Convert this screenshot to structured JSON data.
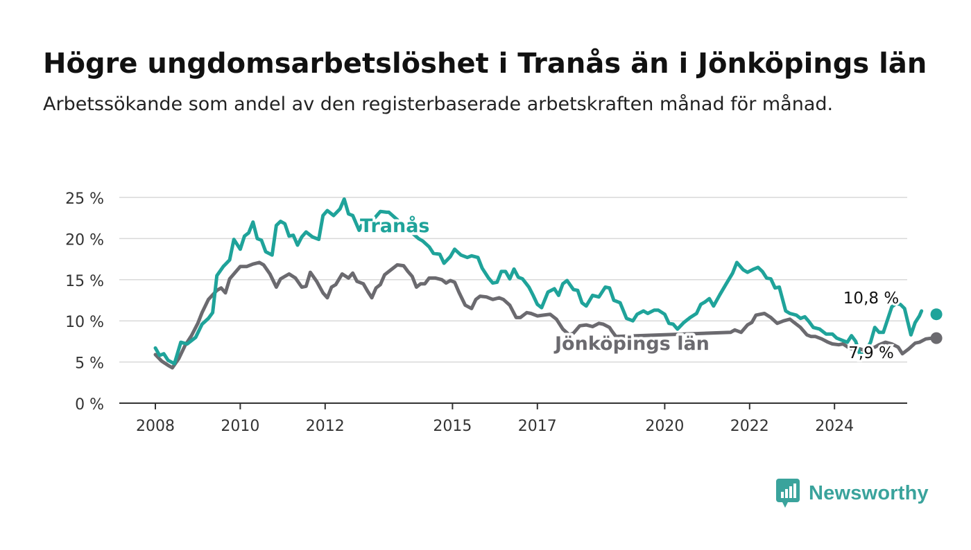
{
  "header": {
    "title": "Högre ungdomsarbetslöshet i Tranås än i Jönköpings län",
    "subtitle": "Arbetssökande som andel av den registerbaserade arbetskraften månad för månad."
  },
  "brand": {
    "name": "Newsworthy",
    "color": "#3aa39c",
    "icon": "newsworthy-logo-icon"
  },
  "chart_data": {
    "type": "line",
    "title": "Högre ungdomsarbetslöshet i Tranås än i Jönköpings län",
    "subtitle": "Arbetssökande som andel av den registerbaserade arbetskraften månad för månad.",
    "xlabel": "",
    "ylabel": "",
    "ylim": [
      0,
      25
    ],
    "yticks": [
      0,
      5,
      10,
      15,
      20,
      25
    ],
    "ytick_labels": [
      "0 %",
      "5 %",
      "10 %",
      "15 %",
      "20 %",
      "25 %"
    ],
    "xticks": [
      2008,
      2010,
      2012,
      2015,
      2017,
      2020,
      2022,
      2024
    ],
    "xtick_labels": [
      "2008",
      "2010",
      "2012",
      "2015",
      "2017",
      "2020",
      "2022",
      "2024"
    ],
    "grid": true,
    "legend": "inline labels",
    "series": [
      {
        "name": "Tranås",
        "color": "#1fa39a",
        "end_label": "10,8 %",
        "points": [
          [
            2008.0,
            6.7
          ],
          [
            2008.1,
            5.8
          ],
          [
            2008.2,
            6.0
          ],
          [
            2008.3,
            5.2
          ],
          [
            2008.45,
            4.8
          ],
          [
            2008.6,
            7.4
          ],
          [
            2008.75,
            7.2
          ],
          [
            2008.95,
            8.0
          ],
          [
            2009.1,
            9.6
          ],
          [
            2009.25,
            10.3
          ],
          [
            2009.35,
            11.0
          ],
          [
            2009.45,
            15.5
          ],
          [
            2009.6,
            16.6
          ],
          [
            2009.75,
            17.4
          ],
          [
            2009.85,
            19.9
          ],
          [
            2010.0,
            18.7
          ],
          [
            2010.1,
            20.3
          ],
          [
            2010.2,
            20.7
          ],
          [
            2010.3,
            22.0
          ],
          [
            2010.4,
            20.0
          ],
          [
            2010.5,
            19.8
          ],
          [
            2010.6,
            18.4
          ],
          [
            2010.75,
            18.0
          ],
          [
            2010.85,
            21.6
          ],
          [
            2010.95,
            22.1
          ],
          [
            2011.05,
            21.8
          ],
          [
            2011.15,
            20.3
          ],
          [
            2011.25,
            20.4
          ],
          [
            2011.35,
            19.2
          ],
          [
            2011.45,
            20.2
          ],
          [
            2011.55,
            20.8
          ],
          [
            2011.7,
            20.2
          ],
          [
            2011.85,
            19.9
          ],
          [
            2011.95,
            22.8
          ],
          [
            2012.05,
            23.4
          ],
          [
            2012.2,
            22.8
          ],
          [
            2012.35,
            23.6
          ],
          [
            2012.45,
            24.8
          ],
          [
            2012.55,
            23.0
          ],
          [
            2012.65,
            22.8
          ],
          [
            2012.8,
            21.0
          ],
          [
            2012.9,
            22.1
          ],
          [
            2013.0,
            22.4
          ],
          [
            2013.15,
            22.4
          ],
          [
            2013.3,
            23.3
          ],
          [
            2013.45,
            23.2
          ],
          [
            2013.5,
            23.2
          ],
          [
            2014.2,
            20.0
          ],
          [
            2014.3,
            19.7
          ],
          [
            2014.45,
            19.0
          ],
          [
            2014.55,
            18.2
          ],
          [
            2014.7,
            18.1
          ],
          [
            2014.8,
            17.0
          ],
          [
            2014.95,
            17.8
          ],
          [
            2015.05,
            18.7
          ],
          [
            2015.2,
            18.0
          ],
          [
            2015.35,
            17.7
          ],
          [
            2015.45,
            17.9
          ],
          [
            2015.6,
            17.7
          ],
          [
            2015.7,
            16.4
          ],
          [
            2015.85,
            15.2
          ],
          [
            2015.95,
            14.6
          ],
          [
            2016.05,
            14.7
          ],
          [
            2016.15,
            16.0
          ],
          [
            2016.25,
            16.0
          ],
          [
            2016.35,
            15.1
          ],
          [
            2016.45,
            16.3
          ],
          [
            2016.55,
            15.3
          ],
          [
            2016.65,
            15.1
          ],
          [
            2016.8,
            14.1
          ],
          [
            2016.9,
            13.1
          ],
          [
            2017.0,
            12.0
          ],
          [
            2017.1,
            11.6
          ],
          [
            2017.25,
            13.5
          ],
          [
            2017.4,
            13.9
          ],
          [
            2017.5,
            13.1
          ],
          [
            2017.6,
            14.5
          ],
          [
            2017.7,
            14.9
          ],
          [
            2017.85,
            13.8
          ],
          [
            2017.95,
            13.7
          ],
          [
            2018.05,
            12.2
          ],
          [
            2018.15,
            11.8
          ],
          [
            2018.3,
            13.1
          ],
          [
            2018.45,
            12.9
          ],
          [
            2018.6,
            14.1
          ],
          [
            2018.7,
            14.0
          ],
          [
            2018.8,
            12.5
          ],
          [
            2018.95,
            12.2
          ],
          [
            2019.1,
            10.3
          ],
          [
            2019.25,
            10.0
          ],
          [
            2019.35,
            10.8
          ],
          [
            2019.5,
            11.2
          ],
          [
            2019.6,
            10.9
          ],
          [
            2019.75,
            11.3
          ],
          [
            2019.85,
            11.3
          ],
          [
            2020.0,
            10.8
          ],
          [
            2020.1,
            9.7
          ],
          [
            2020.2,
            9.6
          ],
          [
            2020.3,
            9.0
          ],
          [
            2020.45,
            9.8
          ],
          [
            2020.6,
            10.4
          ],
          [
            2020.75,
            10.9
          ],
          [
            2020.85,
            12.0
          ],
          [
            2020.95,
            12.3
          ],
          [
            2021.05,
            12.7
          ],
          [
            2021.15,
            11.8
          ],
          [
            2021.3,
            13.2
          ],
          [
            2021.45,
            14.5
          ],
          [
            2021.6,
            15.8
          ],
          [
            2021.7,
            17.1
          ],
          [
            2021.85,
            16.2
          ],
          [
            2021.95,
            15.9
          ],
          [
            2022.1,
            16.3
          ],
          [
            2022.2,
            16.5
          ],
          [
            2022.3,
            16.0
          ],
          [
            2022.4,
            15.2
          ],
          [
            2022.5,
            15.1
          ],
          [
            2022.6,
            14.0
          ],
          [
            2022.7,
            14.1
          ],
          [
            2022.85,
            11.2
          ],
          [
            2022.95,
            10.9
          ],
          [
            2023.1,
            10.7
          ],
          [
            2023.2,
            10.3
          ],
          [
            2023.3,
            10.5
          ],
          [
            2023.4,
            9.9
          ],
          [
            2023.5,
            9.2
          ],
          [
            2023.65,
            9.0
          ],
          [
            2023.8,
            8.4
          ],
          [
            2023.95,
            8.4
          ],
          [
            2024.05,
            7.9
          ],
          [
            2024.2,
            7.6
          ],
          [
            2024.3,
            7.4
          ],
          [
            2024.4,
            8.2
          ],
          [
            2024.5,
            7.5
          ],
          [
            2024.6,
            5.9
          ],
          [
            2024.7,
            6.0
          ],
          [
            2024.85,
            7.4
          ],
          [
            2024.95,
            9.2
          ],
          [
            2025.05,
            8.6
          ],
          [
            2025.15,
            8.6
          ],
          [
            2025.35,
            11.7
          ],
          [
            2025.45,
            12.1
          ],
          [
            2025.55,
            12.0
          ],
          [
            2025.65,
            11.5
          ],
          [
            2025.8,
            8.3
          ],
          [
            2025.9,
            9.8
          ],
          [
            2026.0,
            10.6
          ],
          [
            2026.05,
            11.2
          ]
        ],
        "last_point": [
          2026.4,
          10.8
        ]
      },
      {
        "name": "Jönköpings län",
        "color": "#6b6a6f",
        "end_label": "7,9 %",
        "points": [
          [
            2008.0,
            5.9
          ],
          [
            2008.15,
            5.1
          ],
          [
            2008.3,
            4.6
          ],
          [
            2008.4,
            4.3
          ],
          [
            2008.55,
            5.4
          ],
          [
            2008.7,
            7.0
          ],
          [
            2008.85,
            8.2
          ],
          [
            2009.0,
            9.7
          ],
          [
            2009.1,
            11.0
          ],
          [
            2009.25,
            12.6
          ],
          [
            2009.45,
            13.7
          ],
          [
            2009.55,
            14.0
          ],
          [
            2009.65,
            13.4
          ],
          [
            2009.75,
            15.1
          ],
          [
            2009.9,
            16.0
          ],
          [
            2010.0,
            16.6
          ],
          [
            2010.15,
            16.6
          ],
          [
            2010.3,
            16.9
          ],
          [
            2010.45,
            17.1
          ],
          [
            2010.55,
            16.8
          ],
          [
            2010.7,
            15.7
          ],
          [
            2010.85,
            14.1
          ],
          [
            2010.95,
            15.1
          ],
          [
            2011.05,
            15.4
          ],
          [
            2011.15,
            15.7
          ],
          [
            2011.3,
            15.2
          ],
          [
            2011.45,
            14.1
          ],
          [
            2011.55,
            14.2
          ],
          [
            2011.65,
            15.9
          ],
          [
            2011.8,
            14.8
          ],
          [
            2011.95,
            13.4
          ],
          [
            2012.05,
            12.8
          ],
          [
            2012.15,
            14.1
          ],
          [
            2012.25,
            14.4
          ],
          [
            2012.4,
            15.7
          ],
          [
            2012.55,
            15.2
          ],
          [
            2012.65,
            15.8
          ],
          [
            2012.75,
            14.8
          ],
          [
            2012.9,
            14.5
          ],
          [
            2013.0,
            13.6
          ],
          [
            2013.1,
            12.8
          ],
          [
            2013.2,
            14.0
          ],
          [
            2013.3,
            14.4
          ],
          [
            2013.4,
            15.6
          ],
          [
            2013.55,
            16.2
          ],
          [
            2013.7,
            16.8
          ],
          [
            2013.85,
            16.7
          ],
          [
            2013.95,
            16.0
          ],
          [
            2014.05,
            15.4
          ],
          [
            2014.15,
            14.1
          ],
          [
            2014.25,
            14.5
          ],
          [
            2014.35,
            14.5
          ],
          [
            2014.45,
            15.2
          ],
          [
            2014.6,
            15.2
          ],
          [
            2014.75,
            15.0
          ],
          [
            2014.85,
            14.6
          ],
          [
            2014.95,
            14.9
          ],
          [
            2015.05,
            14.7
          ],
          [
            2015.15,
            13.5
          ],
          [
            2015.3,
            11.9
          ],
          [
            2015.45,
            11.5
          ],
          [
            2015.55,
            12.6
          ],
          [
            2015.65,
            13.0
          ],
          [
            2015.8,
            12.9
          ],
          [
            2015.95,
            12.6
          ],
          [
            2016.1,
            12.8
          ],
          [
            2016.2,
            12.6
          ],
          [
            2016.35,
            11.9
          ],
          [
            2016.5,
            10.4
          ],
          [
            2016.6,
            10.4
          ],
          [
            2016.75,
            11.0
          ],
          [
            2016.85,
            10.9
          ],
          [
            2017.0,
            10.6
          ],
          [
            2017.15,
            10.7
          ],
          [
            2017.3,
            10.8
          ],
          [
            2017.45,
            10.2
          ],
          [
            2017.6,
            9.0
          ],
          [
            2017.75,
            8.3
          ],
          [
            2017.85,
            8.5
          ],
          [
            2018.0,
            9.4
          ],
          [
            2018.15,
            9.5
          ],
          [
            2018.3,
            9.3
          ],
          [
            2018.45,
            9.7
          ],
          [
            2018.55,
            9.6
          ],
          [
            2018.7,
            9.2
          ],
          [
            2018.75,
            8.8
          ],
          [
            2018.85,
            8.1
          ],
          [
            2021.55,
            8.6
          ],
          [
            2021.65,
            8.9
          ],
          [
            2021.8,
            8.6
          ],
          [
            2021.95,
            9.5
          ],
          [
            2022.05,
            9.8
          ],
          [
            2022.15,
            10.7
          ],
          [
            2022.25,
            10.8
          ],
          [
            2022.35,
            10.9
          ],
          [
            2022.5,
            10.4
          ],
          [
            2022.65,
            9.7
          ],
          [
            2022.8,
            10.0
          ],
          [
            2022.95,
            10.2
          ],
          [
            2023.05,
            9.8
          ],
          [
            2023.2,
            9.2
          ],
          [
            2023.35,
            8.3
          ],
          [
            2023.45,
            8.1
          ],
          [
            2023.55,
            8.1
          ],
          [
            2023.7,
            7.8
          ],
          [
            2023.85,
            7.4
          ],
          [
            2023.95,
            7.2
          ],
          [
            2024.1,
            7.1
          ],
          [
            2024.2,
            7.2
          ],
          [
            2024.35,
            6.7
          ],
          [
            2024.5,
            6.5
          ],
          [
            2024.6,
            6.6
          ],
          [
            2024.7,
            6.4
          ],
          [
            2024.8,
            6.7
          ],
          [
            2024.95,
            6.8
          ],
          [
            2025.05,
            7.1
          ],
          [
            2025.2,
            7.4
          ],
          [
            2025.35,
            7.2
          ],
          [
            2025.5,
            6.8
          ],
          [
            2025.6,
            6.0
          ],
          [
            2025.75,
            6.6
          ],
          [
            2025.9,
            7.3
          ],
          [
            2026.0,
            7.4
          ],
          [
            2026.15,
            7.8
          ],
          [
            2026.3,
            7.9
          ]
        ],
        "last_point": [
          2026.4,
          7.9
        ]
      }
    ]
  }
}
